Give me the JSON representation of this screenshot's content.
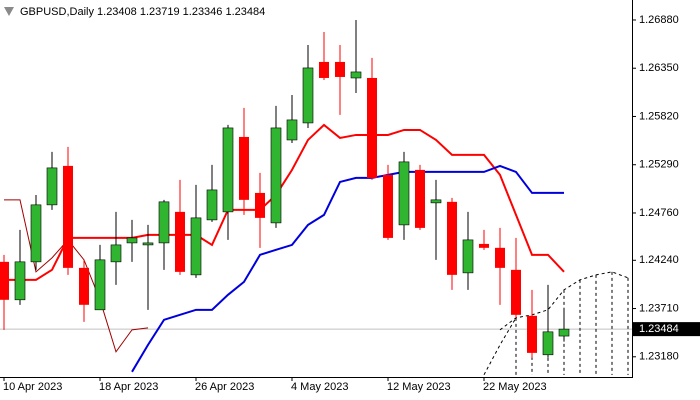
{
  "chart_data": {
    "type": "candlestick",
    "title": "GBPUSD,Daily  1.23408 1.23719 1.23346 1.23484",
    "categories": [
      "10 Apr 2023",
      null,
      null,
      null,
      null,
      null,
      "18 Apr 2023",
      null,
      null,
      null,
      null,
      null,
      "26 Apr 2023",
      null,
      null,
      null,
      null,
      null,
      "4 May 2023",
      null,
      null,
      null,
      null,
      null,
      "12 May 2023",
      null,
      null,
      null,
      null,
      null,
      "22 May 2023",
      null,
      null,
      null,
      null,
      null,
      null,
      null,
      null,
      null
    ],
    "open": [
      1.24223,
      1.23806,
      1.24223,
      1.24849,
      1.25277,
      1.24157,
      1.23696,
      1.24223,
      1.24431,
      1.24409,
      1.24431,
      1.24772,
      1.2408,
      1.24684,
      1.24772,
      1.25595,
      1.2498,
      1.24651,
      1.25562,
      1.25749,
      1.26419,
      1.26419,
      1.26243,
      1.26243,
      1.25178,
      1.24629,
      1.25233,
      1.24871,
      1.24882,
      1.24102,
      1.2442,
      1.24377,
      1.24135,
      1.2363,
      1.23202,
      1.23408,
      null,
      null,
      null,
      null
    ],
    "high": [
      1.243,
      1.24574,
      1.24958,
      1.25431,
      1.25486,
      1.24245,
      1.24409,
      1.24772,
      1.24684,
      1.24629,
      1.24904,
      1.25123,
      1.25068,
      1.25288,
      1.25727,
      1.25914,
      1.252,
      1.25936,
      1.26056,
      1.26605,
      1.26748,
      1.26605,
      1.2688,
      1.26463,
      1.25288,
      1.25431,
      1.25288,
      1.25123,
      1.24926,
      1.24772,
      1.24574,
      1.24596,
      1.24486,
      1.23915,
      1.2397,
      1.23719,
      null,
      null,
      null,
      null
    ],
    "low": [
      1.23476,
      1.23751,
      1.24135,
      1.24794,
      1.2408,
      1.23564,
      1.23696,
      1.2397,
      1.24223,
      1.23696,
      1.24135,
      1.2408,
      1.24047,
      1.24662,
      1.24464,
      1.24739,
      1.24377,
      1.24596,
      1.25529,
      1.25694,
      1.26221,
      1.25837,
      1.26078,
      1.25123,
      1.24464,
      1.24464,
      1.24574,
      1.24245,
      1.23915,
      1.23915,
      1.24355,
      1.23751,
      1.23608,
      1.23169,
      1.23169,
      1.23346,
      null,
      null,
      null,
      null
    ],
    "close": [
      1.23806,
      1.24223,
      1.24849,
      1.25255,
      1.24157,
      1.23751,
      1.24245,
      1.24409,
      1.24486,
      1.24431,
      1.24882,
      1.24113,
      1.24706,
      1.25013,
      1.25694,
      1.24904,
      1.24706,
      1.25694,
      1.25782,
      1.26353,
      1.26243,
      1.26254,
      1.26309,
      1.25145,
      1.24486,
      1.25321,
      1.24596,
      1.24904,
      1.2408,
      1.24464,
      1.24377,
      1.24157,
      1.23641,
      1.23223,
      1.23454,
      1.23484,
      null,
      null,
      null,
      null
    ],
    "up_color": "#2fb52f",
    "down_color": "#ff0000",
    "lines": [
      {
        "color": "#ff0000",
        "width": 2,
        "dash": false,
        "values": [
          1.24025,
          1.24025,
          1.24025,
          1.24135,
          1.24486,
          1.24486,
          1.24486,
          1.24486,
          1.24486,
          1.24519,
          1.24519,
          1.24519,
          1.24519,
          1.24409,
          1.24794,
          1.24794,
          1.24794,
          1.24958,
          1.25233,
          1.25562,
          1.25727,
          1.25584,
          1.25617,
          1.25617,
          1.25617,
          1.25672,
          1.25672,
          1.25562,
          1.25398,
          1.25398,
          1.25398,
          1.25178,
          1.24739,
          1.243,
          1.243,
          1.24113,
          null,
          null,
          null,
          null
        ]
      },
      {
        "color": "#0000dd",
        "width": 2,
        "dash": false,
        "values": [
          null,
          null,
          null,
          null,
          null,
          null,
          null,
          null,
          1.23015,
          1.23311,
          1.23586,
          1.23641,
          1.23696,
          1.23696,
          1.23861,
          1.24003,
          1.243,
          1.24355,
          1.24409,
          1.24629,
          1.24739,
          1.25101,
          1.25145,
          1.25145,
          1.25178,
          1.25211,
          1.25211,
          1.25211,
          1.25211,
          1.25211,
          1.25211,
          1.25277,
          1.25211,
          1.2498,
          1.2498,
          1.2498,
          null,
          null,
          null,
          null
        ]
      },
      {
        "color": "#a00000",
        "width": 1,
        "dash": false,
        "values": [
          1.24904,
          1.24904,
          1.24113,
          1.24267,
          1.24464,
          1.24245,
          1.23806,
          1.23235,
          1.23476,
          1.23498,
          null,
          null,
          null,
          null,
          null,
          null,
          null,
          null,
          null,
          null,
          null,
          null,
          null,
          null,
          null,
          null,
          null,
          null,
          null,
          null,
          null,
          null,
          null,
          null,
          null,
          null,
          null,
          null,
          null,
          null
        ]
      },
      {
        "color": "#000000",
        "width": 1,
        "dash": true,
        "hatch": true,
        "values": [
          null,
          null,
          null,
          null,
          null,
          null,
          null,
          null,
          null,
          null,
          null,
          null,
          null,
          null,
          null,
          null,
          null,
          null,
          null,
          null,
          null,
          null,
          null,
          null,
          null,
          null,
          null,
          null,
          null,
          null,
          null,
          1.23476,
          1.23608,
          1.23641,
          1.23696,
          1.23915,
          1.24025,
          1.2408,
          1.24113,
          1.24047
        ]
      },
      {
        "color": "#000000",
        "width": 1,
        "dash": true,
        "values": [
          null,
          null,
          null,
          null,
          null,
          null,
          null,
          null,
          null,
          null,
          null,
          null,
          null,
          null,
          null,
          null,
          null,
          null,
          null,
          null,
          null,
          null,
          null,
          null,
          null,
          null,
          null,
          null,
          null,
          null,
          1.22982,
          1.23311,
          1.23608,
          null,
          null,
          null,
          null,
          null,
          null,
          null
        ]
      }
    ],
    "ylim": [
      1.2298,
      1.2705
    ],
    "yticks": [
      {
        "value": 1.2688,
        "label": "1.26880"
      },
      {
        "value": 1.2635,
        "label": "1.26350"
      },
      {
        "value": 1.2582,
        "label": "1.25820"
      },
      {
        "value": 1.2529,
        "label": "1.25290"
      },
      {
        "value": 1.2476,
        "label": "1.24760"
      },
      {
        "value": 1.2424,
        "label": "1.24240"
      },
      {
        "value": 1.2371,
        "label": "1.23710"
      },
      {
        "value": 1.2318,
        "label": "1.23180"
      }
    ],
    "last_price": 1.23484,
    "last_price_color": "#c0c0c0"
  }
}
